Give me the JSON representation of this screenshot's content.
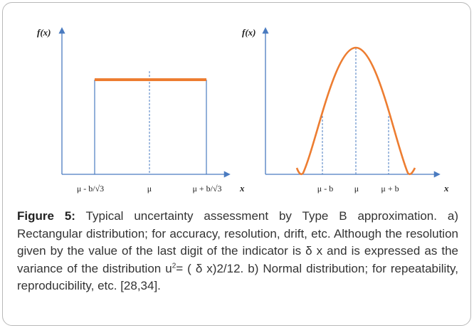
{
  "figure": {
    "left": {
      "y_label": "f(x)",
      "x_label": "x",
      "ticks": [
        "μ - b/√3",
        "μ",
        "μ + b/√3"
      ]
    },
    "right": {
      "y_label": "f(x)",
      "x_label": "x",
      "ticks": [
        "μ - b",
        "μ",
        "μ + b"
      ]
    }
  },
  "caption": {
    "label": "Figure 5:",
    "text_1": " Typical uncertainty assessment by Type B approximation. a) Rectangular distribution; for accuracy, resolution, drift, etc. Although the resolution given by the value of the last digit of the indicator is  δ x and is expressed as the variance of the distribution u",
    "sup": "2",
    "text_2": "= ( δ x)2/12. b) Normal distribution; for repeatability, reproducibility, etc. [28,34]."
  }
}
